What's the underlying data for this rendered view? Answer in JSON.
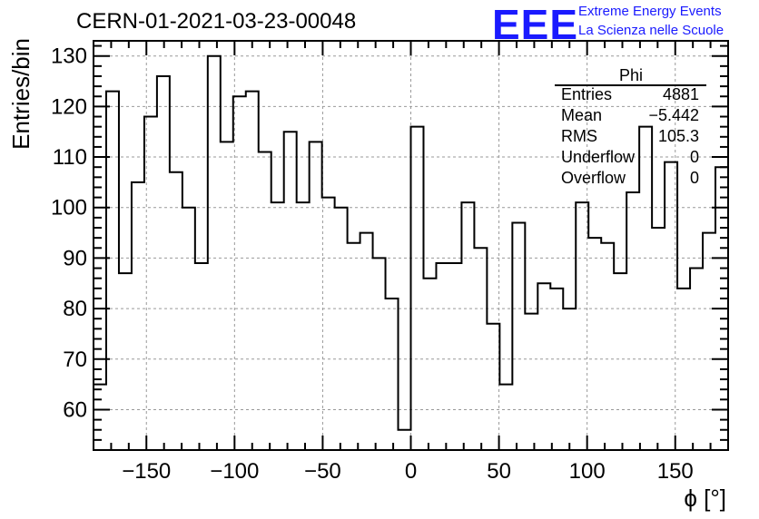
{
  "header": {
    "title": "CERN-01-2021-03-23-00048",
    "logo_text": "EEE",
    "logo_line1": "Extreme Energy Events",
    "logo_line2": "La Scienza nelle Scuole"
  },
  "stats": {
    "title": "Phi",
    "rows": [
      {
        "label": "Entries",
        "value": "4881"
      },
      {
        "label": "Mean",
        "value": "−5.442"
      },
      {
        "label": "RMS",
        "value": "105.3"
      },
      {
        "label": "Underflow",
        "value": "0"
      },
      {
        "label": "Overflow",
        "value": "0"
      }
    ]
  },
  "chart_data": {
    "type": "histogram",
    "title": "CERN-01-2021-03-23-00048",
    "xlabel": "ϕ [°]",
    "ylabel": "Entries/bin",
    "xlim": [
      -180,
      180
    ],
    "ylim": [
      52,
      133
    ],
    "bin_width": 7.2,
    "grid": true,
    "xticks": [
      -150,
      -100,
      -50,
      0,
      50,
      100,
      150
    ],
    "yticks": [
      60,
      70,
      80,
      90,
      100,
      110,
      120,
      130
    ],
    "tick_labels_x": [
      "−150",
      "−100",
      "−50",
      "0",
      "50",
      "100",
      "150"
    ],
    "tick_labels_y": [
      "60",
      "70",
      "80",
      "90",
      "100",
      "110",
      "120",
      "130"
    ],
    "bin_edges_start": -180,
    "values": [
      65,
      123,
      87,
      105,
      118,
      126,
      107,
      100,
      89,
      130,
      113,
      122,
      123,
      111,
      101,
      115,
      101,
      113,
      102,
      100,
      93,
      95,
      90,
      82,
      56,
      116,
      86,
      89,
      89,
      101,
      92,
      77,
      65,
      97,
      79,
      85,
      84,
      80,
      101,
      94,
      93,
      87,
      103,
      116,
      96,
      109,
      84,
      88,
      95,
      108
    ],
    "line_color": "#000000"
  }
}
